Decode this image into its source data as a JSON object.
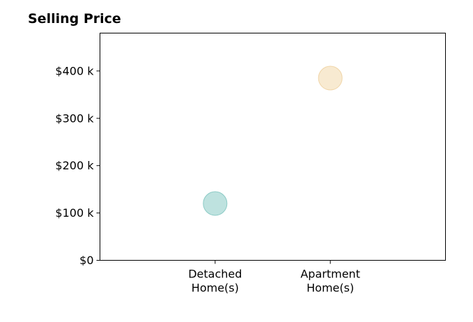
{
  "chart_data": {
    "type": "scatter",
    "title": "Selling Price",
    "xlabel": "",
    "ylabel": "",
    "categories": [
      [
        "Detached",
        "Home(s)"
      ],
      [
        "Apartment",
        "Home(s)"
      ]
    ],
    "values": [
      120000,
      385000
    ],
    "point_colors": [
      "#a8d8d4",
      "#f6e3c1"
    ],
    "point_edge_colors": [
      "#8ccbc6",
      "#f0d5a8"
    ],
    "ylim": [
      0,
      480000
    ],
    "yticks": [
      0,
      100000,
      200000,
      300000,
      400000
    ],
    "ytick_labels": [
      "$0",
      "$100 k",
      "$200 k",
      "$300 k",
      "$400 k"
    ],
    "xlim": [
      -1,
      2
    ],
    "grid": false
  }
}
